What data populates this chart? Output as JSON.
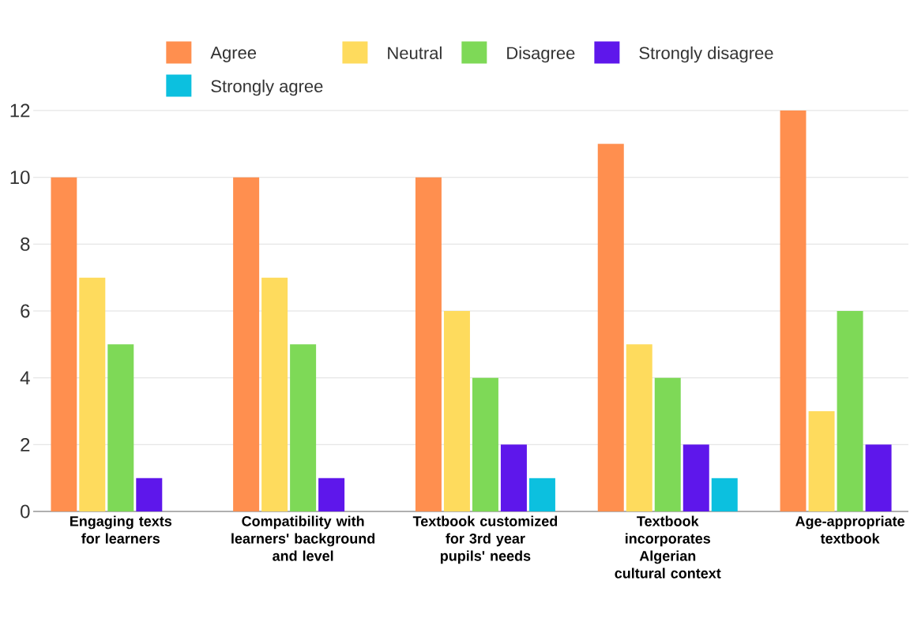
{
  "chart_data": {
    "type": "bar",
    "categories": [
      "Engaging texts for learners",
      "Compatibility with learners' background and level",
      "Textbook customized for 3rd year pupils' needs",
      "Textbook incorporates Algerian cultural context",
      "Age-appropriate textbook"
    ],
    "series": [
      {
        "name": "Agree",
        "color": "#ff8f4f",
        "values": [
          10,
          10,
          10,
          11,
          12
        ]
      },
      {
        "name": "Neutral",
        "color": "#fedb5d",
        "values": [
          7,
          7,
          6,
          5,
          3
        ]
      },
      {
        "name": "Disagree",
        "color": "#7ed957",
        "values": [
          5,
          5,
          4,
          4,
          6
        ]
      },
      {
        "name": "Strongly disagree",
        "color": "#5e17eb",
        "values": [
          1,
          1,
          2,
          2,
          2
        ]
      },
      {
        "name": "Strongly agree",
        "color": "#0cc0df",
        "values": [
          null,
          null,
          1,
          1,
          null
        ]
      }
    ],
    "ylim": [
      0,
      12
    ],
    "yticks": [
      0,
      2,
      4,
      6,
      8,
      10,
      12
    ],
    "grid": "y",
    "legend": "top"
  }
}
